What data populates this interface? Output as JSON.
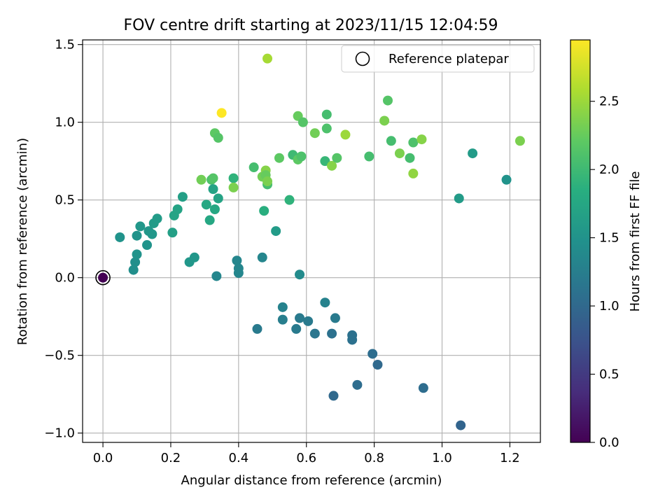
{
  "chart_data": {
    "type": "scatter",
    "title": "FOV centre drift starting at 2023/11/15 12:04:59",
    "xlabel": "Angular distance from reference (arcmin)",
    "ylabel": "Rotation from reference (arcmin)",
    "xlim": [
      -0.06,
      1.29
    ],
    "ylim": [
      -1.06,
      1.53
    ],
    "xticks": [
      0.0,
      0.2,
      0.4,
      0.6,
      0.8,
      1.0,
      1.2
    ],
    "xtick_labels": [
      "0.0",
      "0.2",
      "0.4",
      "0.6",
      "0.8",
      "1.0",
      "1.2"
    ],
    "yticks": [
      -1.0,
      -0.5,
      0.0,
      0.5,
      1.0,
      1.5
    ],
    "ytick_labels": [
      "−1.0",
      "−0.5",
      "0.0",
      "0.5",
      "1.0",
      "1.5"
    ],
    "grid": true,
    "legend": {
      "placement": "top-right",
      "label": "Reference platepar"
    },
    "reference_point": {
      "x": 0.0,
      "y": 0.0,
      "hours": 0.0
    },
    "colorbar": {
      "label": "Hours from first FF file",
      "colormap": "viridis",
      "range": [
        0.0,
        2.95
      ],
      "ticks": [
        0.0,
        0.5,
        1.0,
        1.5,
        2.0,
        2.5
      ],
      "tick_labels": [
        "0.0",
        "0.5",
        "1.0",
        "1.5",
        "2.0",
        "2.5"
      ]
    },
    "points": [
      {
        "x": 0.05,
        "y": 0.26,
        "c": 1.5
      },
      {
        "x": 0.09,
        "y": 0.05,
        "c": 1.45
      },
      {
        "x": 0.095,
        "y": 0.1,
        "c": 1.45
      },
      {
        "x": 0.1,
        "y": 0.15,
        "c": 1.5
      },
      {
        "x": 0.1,
        "y": 0.27,
        "c": 1.5
      },
      {
        "x": 0.11,
        "y": 0.33,
        "c": 1.55
      },
      {
        "x": 0.13,
        "y": 0.21,
        "c": 1.5
      },
      {
        "x": 0.135,
        "y": 0.3,
        "c": 1.55
      },
      {
        "x": 0.145,
        "y": 0.28,
        "c": 1.55
      },
      {
        "x": 0.15,
        "y": 0.35,
        "c": 1.6
      },
      {
        "x": 0.16,
        "y": 0.38,
        "c": 1.6
      },
      {
        "x": 0.205,
        "y": 0.29,
        "c": 1.65
      },
      {
        "x": 0.21,
        "y": 0.4,
        "c": 1.7
      },
      {
        "x": 0.22,
        "y": 0.44,
        "c": 1.7
      },
      {
        "x": 0.235,
        "y": 0.52,
        "c": 1.65
      },
      {
        "x": 0.255,
        "y": 0.1,
        "c": 1.55
      },
      {
        "x": 0.27,
        "y": 0.13,
        "c": 1.55
      },
      {
        "x": 0.29,
        "y": 0.63,
        "c": 2.3
      },
      {
        "x": 0.305,
        "y": 0.47,
        "c": 1.75
      },
      {
        "x": 0.315,
        "y": 0.37,
        "c": 1.75
      },
      {
        "x": 0.32,
        "y": 0.63,
        "c": 2.1
      },
      {
        "x": 0.325,
        "y": 0.64,
        "c": 2.15
      },
      {
        "x": 0.325,
        "y": 0.57,
        "c": 1.7
      },
      {
        "x": 0.33,
        "y": 0.93,
        "c": 2.2
      },
      {
        "x": 0.33,
        "y": 0.44,
        "c": 1.75
      },
      {
        "x": 0.335,
        "y": 0.01,
        "c": 1.35
      },
      {
        "x": 0.34,
        "y": 0.9,
        "c": 2.15
      },
      {
        "x": 0.34,
        "y": 0.51,
        "c": 1.7
      },
      {
        "x": 0.35,
        "y": 1.06,
        "c": 2.95
      },
      {
        "x": 0.385,
        "y": 0.64,
        "c": 1.9
      },
      {
        "x": 0.385,
        "y": 0.58,
        "c": 2.35
      },
      {
        "x": 0.395,
        "y": 0.11,
        "c": 1.35
      },
      {
        "x": 0.4,
        "y": 0.03,
        "c": 1.35
      },
      {
        "x": 0.4,
        "y": 0.06,
        "c": 1.35
      },
      {
        "x": 0.445,
        "y": 0.71,
        "c": 2.05
      },
      {
        "x": 0.455,
        "y": -0.33,
        "c": 1.2
      },
      {
        "x": 0.47,
        "y": 0.13,
        "c": 1.35
      },
      {
        "x": 0.47,
        "y": 0.65,
        "c": 2.3
      },
      {
        "x": 0.475,
        "y": 0.43,
        "c": 1.85
      },
      {
        "x": 0.48,
        "y": 0.69,
        "c": 2.4
      },
      {
        "x": 0.48,
        "y": 0.66,
        "c": 2.25
      },
      {
        "x": 0.485,
        "y": 0.6,
        "c": 2.05
      },
      {
        "x": 0.485,
        "y": 0.62,
        "c": 2.35
      },
      {
        "x": 0.485,
        "y": 1.41,
        "c": 2.55
      },
      {
        "x": 0.51,
        "y": 0.3,
        "c": 1.6
      },
      {
        "x": 0.52,
        "y": 0.77,
        "c": 2.2
      },
      {
        "x": 0.53,
        "y": -0.19,
        "c": 1.3
      },
      {
        "x": 0.53,
        "y": -0.27,
        "c": 1.25
      },
      {
        "x": 0.55,
        "y": 0.5,
        "c": 1.9
      },
      {
        "x": 0.56,
        "y": 0.79,
        "c": 2.0
      },
      {
        "x": 0.57,
        "y": -0.33,
        "c": 1.2
      },
      {
        "x": 0.575,
        "y": 1.04,
        "c": 2.25
      },
      {
        "x": 0.575,
        "y": 0.76,
        "c": 2.2
      },
      {
        "x": 0.58,
        "y": -0.26,
        "c": 1.2
      },
      {
        "x": 0.58,
        "y": 0.02,
        "c": 1.4
      },
      {
        "x": 0.585,
        "y": 0.78,
        "c": 2.1
      },
      {
        "x": 0.59,
        "y": 1.0,
        "c": 2.15
      },
      {
        "x": 0.605,
        "y": -0.28,
        "c": 1.2
      },
      {
        "x": 0.625,
        "y": -0.36,
        "c": 1.15
      },
      {
        "x": 0.625,
        "y": 0.93,
        "c": 2.3
      },
      {
        "x": 0.655,
        "y": -0.16,
        "c": 1.3
      },
      {
        "x": 0.655,
        "y": 0.75,
        "c": 1.95
      },
      {
        "x": 0.66,
        "y": 1.05,
        "c": 2.05
      },
      {
        "x": 0.66,
        "y": 0.96,
        "c": 2.1
      },
      {
        "x": 0.675,
        "y": 0.72,
        "c": 2.4
      },
      {
        "x": 0.675,
        "y": -0.36,
        "c": 1.1
      },
      {
        "x": 0.68,
        "y": -0.76,
        "c": 1.0
      },
      {
        "x": 0.685,
        "y": -0.26,
        "c": 1.2
      },
      {
        "x": 0.69,
        "y": 0.77,
        "c": 2.15
      },
      {
        "x": 0.715,
        "y": 0.92,
        "c": 2.5
      },
      {
        "x": 0.735,
        "y": -0.37,
        "c": 1.1
      },
      {
        "x": 0.735,
        "y": -0.4,
        "c": 1.1
      },
      {
        "x": 0.75,
        "y": -0.69,
        "c": 1.05
      },
      {
        "x": 0.785,
        "y": 0.78,
        "c": 2.05
      },
      {
        "x": 0.795,
        "y": -0.49,
        "c": 1.05
      },
      {
        "x": 0.81,
        "y": -0.56,
        "c": 1.0
      },
      {
        "x": 0.83,
        "y": 1.01,
        "c": 2.35
      },
      {
        "x": 0.84,
        "y": 1.14,
        "c": 2.15
      },
      {
        "x": 0.85,
        "y": 0.88,
        "c": 2.05
      },
      {
        "x": 0.875,
        "y": 0.8,
        "c": 2.35
      },
      {
        "x": 0.905,
        "y": 0.77,
        "c": 2.05
      },
      {
        "x": 0.915,
        "y": 0.87,
        "c": 2.1
      },
      {
        "x": 0.915,
        "y": 0.67,
        "c": 2.45
      },
      {
        "x": 0.94,
        "y": 0.89,
        "c": 2.4
      },
      {
        "x": 0.945,
        "y": -0.71,
        "c": 1.05
      },
      {
        "x": 1.05,
        "y": 0.51,
        "c": 1.6
      },
      {
        "x": 1.055,
        "y": -0.95,
        "c": 0.95
      },
      {
        "x": 1.09,
        "y": 0.8,
        "c": 1.6
      },
      {
        "x": 1.19,
        "y": 0.63,
        "c": 1.5
      },
      {
        "x": 1.23,
        "y": 0.88,
        "c": 2.35
      }
    ]
  }
}
